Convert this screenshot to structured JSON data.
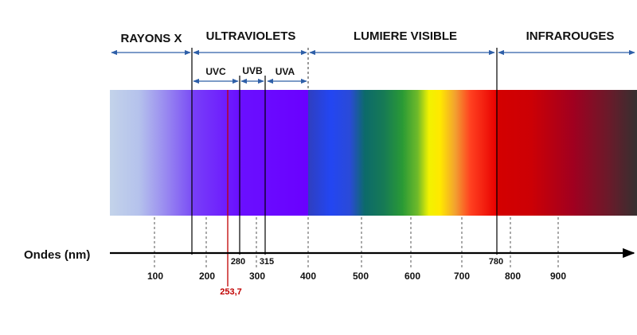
{
  "regions": [
    {
      "key": "xray",
      "label": "RAYONS X"
    },
    {
      "key": "uv",
      "label": "ULTRAVIOLETS"
    },
    {
      "key": "visible",
      "label": "LUMIERE VISIBLE"
    },
    {
      "key": "ir",
      "label": "INFRAROUGES"
    }
  ],
  "uv_subbands": [
    {
      "key": "uvc",
      "label": "UVC"
    },
    {
      "key": "uvb",
      "label": "UVB"
    },
    {
      "key": "uva",
      "label": "UVA"
    }
  ],
  "axis": {
    "title": "Ondes (nm)",
    "ticks": [
      "100",
      "200",
      "300",
      "400",
      "500",
      "600",
      "700",
      "800",
      "900"
    ]
  },
  "boundaries": [
    "280",
    "315",
    "780"
  ],
  "marker": {
    "label": "253,7",
    "color": "#c00000"
  },
  "colors": {
    "arrow": "#2e5fa8",
    "axis": "#000000",
    "marker": "#c00000"
  }
}
